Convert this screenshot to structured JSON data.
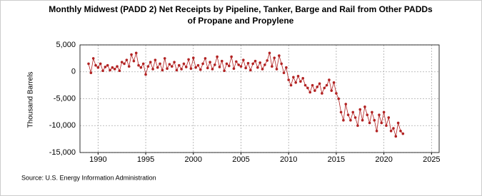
{
  "chart_data": {
    "type": "line",
    "title": "Monthly Midwest (PADD 2) Net Receipts by Pipeline, Tanker, Barge and Rail from Other PADDs",
    "subtitle": "of Propane and Propylene",
    "y_label": "Thousand Barrels",
    "source": "Source: U.S. Energy Information Administration",
    "x": [
      1989,
      1989.25,
      1989.5,
      1989.75,
      1990,
      1990.25,
      1990.5,
      1990.75,
      1991,
      1991.25,
      1991.5,
      1991.75,
      1992,
      1992.25,
      1992.5,
      1992.75,
      1993,
      1993.25,
      1993.5,
      1993.75,
      1994,
      1994.25,
      1994.5,
      1994.75,
      1995,
      1995.25,
      1995.5,
      1995.75,
      1996,
      1996.25,
      1996.5,
      1996.75,
      1997,
      1997.25,
      1997.5,
      1997.75,
      1998,
      1998.25,
      1998.5,
      1998.75,
      1999,
      1999.25,
      1999.5,
      1999.75,
      2000,
      2000.25,
      2000.5,
      2000.75,
      2001,
      2001.25,
      2001.5,
      2001.75,
      2002,
      2002.25,
      2002.5,
      2002.75,
      2003,
      2003.25,
      2003.5,
      2003.75,
      2004,
      2004.25,
      2004.5,
      2004.75,
      2005,
      2005.25,
      2005.5,
      2005.75,
      2006,
      2006.25,
      2006.5,
      2006.75,
      2007,
      2007.25,
      2007.5,
      2007.75,
      2008,
      2008.25,
      2008.5,
      2008.75,
      2009,
      2009.25,
      2009.5,
      2009.75,
      2010,
      2010.25,
      2010.5,
      2010.75,
      2011,
      2011.25,
      2011.5,
      2011.75,
      2012,
      2012.25,
      2012.5,
      2012.75,
      2013,
      2013.25,
      2013.5,
      2013.75,
      2014,
      2014.25,
      2014.5,
      2014.75,
      2015,
      2015.25,
      2015.5,
      2015.75,
      2016,
      2016.25,
      2016.5,
      2016.75,
      2017,
      2017.25,
      2017.5,
      2017.75,
      2018,
      2018.25,
      2018.5,
      2018.75,
      2019,
      2019.25,
      2019.5,
      2019.75,
      2020,
      2020.25,
      2020.5,
      2020.75,
      2021,
      2021.25,
      2021.5,
      2021.75,
      2022
    ],
    "series": [
      {
        "name": "Net Receipts",
        "color": "#b22222",
        "values": [
          1500,
          -200,
          2500,
          1200,
          800,
          1500,
          200,
          900,
          1200,
          300,
          800,
          500,
          1000,
          200,
          1800,
          1500,
          2200,
          1000,
          3200,
          2000,
          3500,
          1200,
          800,
          1500,
          -500,
          1000,
          1800,
          500,
          2200,
          800,
          1500,
          300,
          2500,
          600,
          1400,
          1000,
          1800,
          300,
          1200,
          500,
          1500,
          900,
          2300,
          600,
          2600,
          800,
          1200,
          400,
          1500,
          2500,
          700,
          1800,
          500,
          1300,
          2800,
          900,
          2000,
          200,
          1500,
          1100,
          2800,
          600,
          1900,
          1300,
          1000,
          2200,
          700,
          1600,
          300,
          1500,
          2000,
          800,
          1700,
          500,
          1300,
          2100,
          3500,
          1000,
          2600,
          500,
          3000,
          1500,
          -200,
          800,
          -1500,
          -2500,
          -1000,
          -2000,
          -800,
          -1800,
          -1200,
          -2500,
          -3000,
          -3800,
          -2500,
          -3500,
          -2800,
          -2200,
          -4000,
          -3000,
          -2500,
          -1500,
          -3500,
          -2000,
          -4000,
          -5000,
          -7500,
          -9000,
          -6000,
          -8000,
          -9000,
          -7500,
          -8500,
          -10000,
          -7000,
          -9000,
          -6500,
          -8000,
          -9500,
          -7500,
          -9000,
          -11000,
          -8000,
          -9500,
          -7500,
          -10000,
          -8500,
          -11000,
          -10500,
          -12000,
          -9500,
          -11000,
          -11500
        ]
      }
    ],
    "xlim": [
      1988.1,
      2025.8
    ],
    "xticks": [
      1990,
      1995,
      2000,
      2005,
      2010,
      2015,
      2020,
      2025
    ],
    "ylim": [
      -15000,
      5000
    ],
    "yticks": [
      {
        "value": 5000,
        "label": "5,000"
      },
      0,
      {
        "value": -5000,
        "label": "-5,000"
      },
      {
        "value": -10000,
        "label": "-10,000"
      },
      {
        "value": -15000,
        "label": "-15,000"
      }
    ],
    "grid": true
  }
}
